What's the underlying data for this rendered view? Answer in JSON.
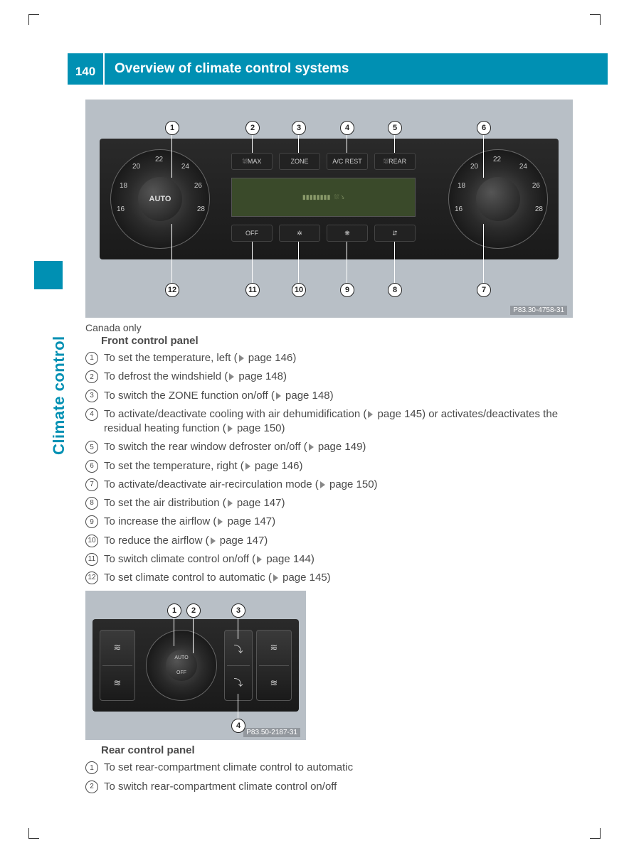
{
  "page_number": "140",
  "page_title": "Overview of climate control systems",
  "side_tab": "Climate control",
  "figure1": {
    "code": "P83.30-4758-31",
    "dial_center_left": "AUTO",
    "dial_numbers": [
      "16",
      "18",
      "20",
      "22",
      "24",
      "26",
      "28"
    ],
    "buttons_top": [
      "⛆MAX",
      "ZONE",
      "A/C REST",
      "⛆REAR"
    ],
    "buttons_bottom": [
      "OFF",
      "✲",
      "❋",
      "⇵"
    ],
    "callouts": {
      "1": "1",
      "2": "2",
      "3": "3",
      "4": "4",
      "5": "5",
      "6": "6",
      "7": "7",
      "8": "8",
      "9": "9",
      "10": "10",
      "11": "11",
      "12": "12"
    }
  },
  "caption1": "Canada only",
  "subhead1": "Front control panel",
  "legend1": [
    {
      "n": "1",
      "t": "To set the temperature, left (▷ page 146)"
    },
    {
      "n": "2",
      "t": "To defrost the windshield (▷ page 148)"
    },
    {
      "n": "3",
      "t": "To switch the ZONE function on/off (▷ page 148)"
    },
    {
      "n": "4",
      "t": "To activate/deactivate cooling with air dehumidification (▷ page 145) or activates/deactivates the residual heating function (▷ page 150)"
    },
    {
      "n": "5",
      "t": "To switch the rear window defroster on/off (▷ page 149)"
    },
    {
      "n": "6",
      "t": "To set the temperature, right (▷ page 146)"
    },
    {
      "n": "7",
      "t": "To activate/deactivate air-recirculation mode (▷ page 150)"
    },
    {
      "n": "8",
      "t": "To set the air distribution (▷ page 147)"
    },
    {
      "n": "9",
      "t": "To increase the airflow (▷ page 147)"
    },
    {
      "n": "10",
      "t": "To reduce the airflow (▷ page 147)"
    },
    {
      "n": "11",
      "t": "To switch climate control on/off (▷ page 144)"
    },
    {
      "n": "12",
      "t": "To set climate control to automatic (▷ page 145)"
    }
  ],
  "figure2": {
    "code": "P83.50-2187-31",
    "dial_labels": {
      "top": "AUTO",
      "bottom": "OFF"
    },
    "callouts": {
      "1": "1",
      "2": "2",
      "3": "3",
      "4": "4"
    }
  },
  "subhead2": "Rear control panel",
  "legend2": [
    {
      "n": "1",
      "t": "To set rear-compartment climate control to automatic"
    },
    {
      "n": "2",
      "t": "To switch rear-compartment climate control on/off"
    }
  ]
}
